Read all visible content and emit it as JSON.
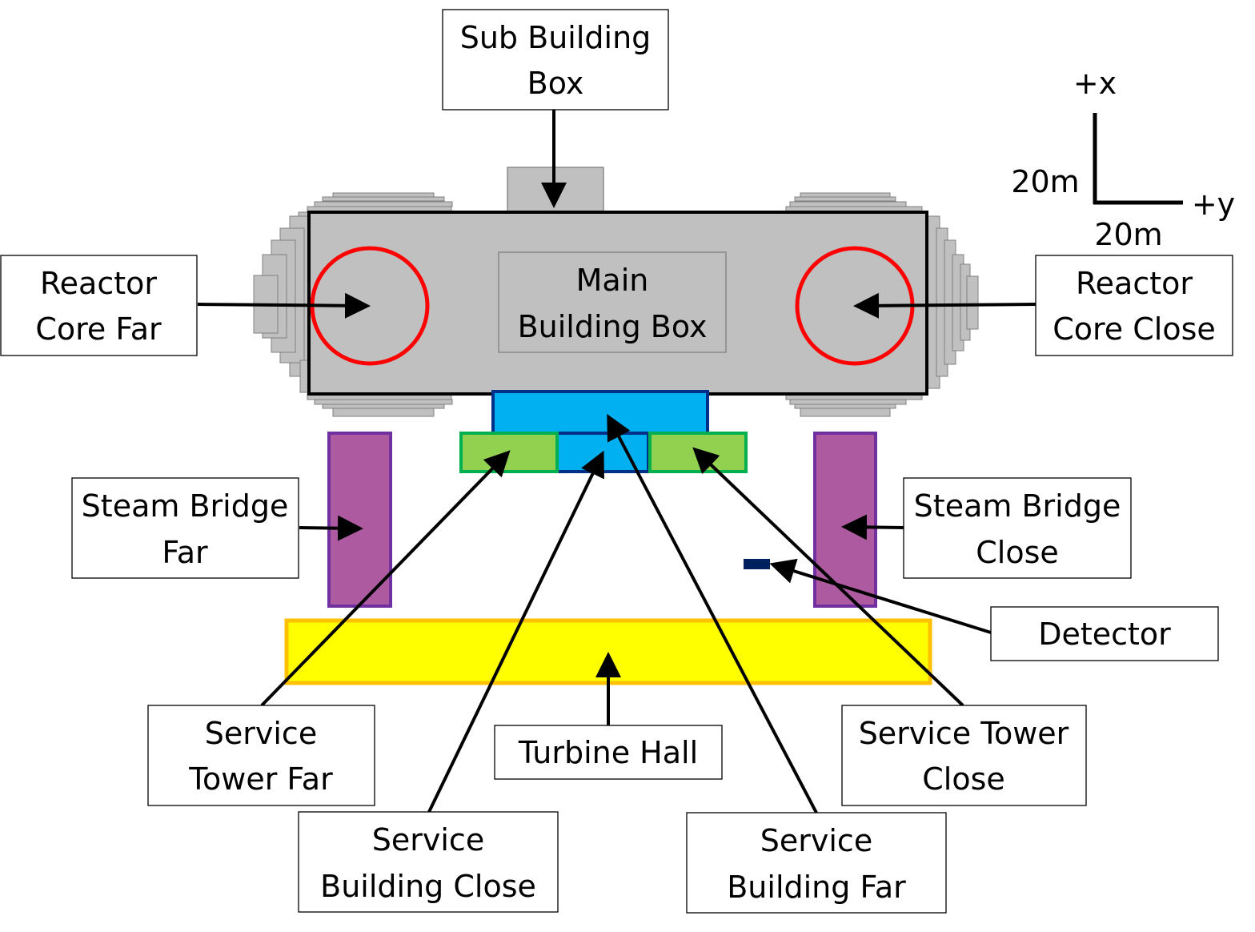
{
  "diagram": {
    "labels": {
      "sub_building_box": [
        "Sub Building",
        "Box"
      ],
      "main_building_box": [
        "Main",
        "Building Box"
      ],
      "reactor_core_far": [
        "Reactor",
        "Core Far"
      ],
      "reactor_core_close": [
        "Reactor",
        "Core Close"
      ],
      "steam_bridge_far": [
        "Steam Bridge",
        "Far"
      ],
      "steam_bridge_close": [
        "Steam Bridge",
        "Close"
      ],
      "detector": [
        "Detector"
      ],
      "turbine_hall": [
        "Turbine Hall"
      ],
      "service_tower_far": [
        "Service",
        "Tower Far"
      ],
      "service_tower_close": [
        "Service Tower",
        "Close"
      ],
      "service_building_close": [
        "Service",
        "Building Close"
      ],
      "service_building_far": [
        "Service",
        "Building Far"
      ]
    },
    "axes": {
      "x_label": "+x",
      "y_label": "+y",
      "x_scale": "20m",
      "y_scale": "20m"
    },
    "colors": {
      "main_building": "#c0c0c0",
      "reactor_core": "#ff0000",
      "service_building": "#00b0f0",
      "service_building_border": "#002f87",
      "service_tower": "#92d050",
      "service_tower_border": "#00b050",
      "steam_bridge": "#ae5aa0",
      "steam_bridge_border": "#7030a0",
      "turbine_hall": "#ffff00",
      "turbine_hall_border": "#ffc000",
      "detector": "#002060"
    }
  }
}
